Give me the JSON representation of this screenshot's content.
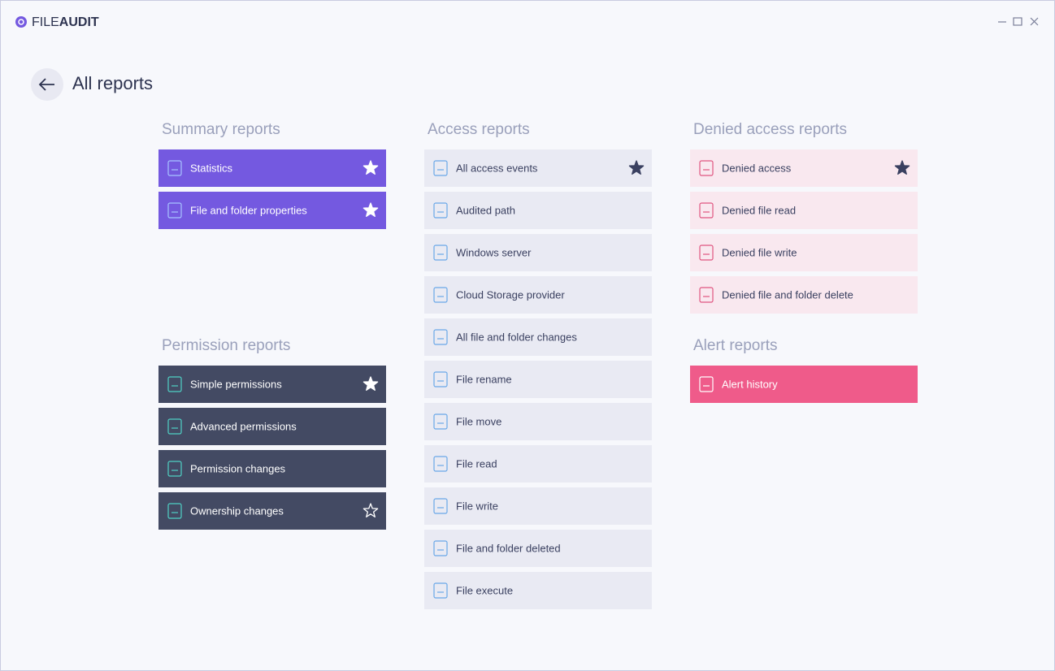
{
  "brand": {
    "prefix": "FILE",
    "suffix": "AUDIT"
  },
  "title": "All reports",
  "sections": [
    {
      "title": "Summary reports",
      "color": "#7459e0",
      "text_color": "#ffffff",
      "icon_color": "#a8c4ff",
      "items": [
        {
          "label": "Statistics",
          "star": "filled"
        },
        {
          "label": "File and folder properties",
          "star": "filled"
        }
      ]
    },
    {
      "title": "Permission reports",
      "color": "#434a63",
      "text_color": "#ffffff",
      "icon_color": "#4fd1c5",
      "items": [
        {
          "label": "Simple permissions",
          "star": "filled"
        },
        {
          "label": "Advanced permissions"
        },
        {
          "label": "Permission changes"
        },
        {
          "label": "Ownership changes",
          "star": "outline"
        }
      ]
    },
    {
      "title": "Access reports",
      "color": "#e9eaf3",
      "text_color": "#3a4060",
      "icon_color": "#6aa8e8",
      "items": [
        {
          "label": "All access events",
          "star": "filled"
        },
        {
          "label": "Audited path"
        },
        {
          "label": "Windows server"
        },
        {
          "label": "Cloud Storage provider"
        },
        {
          "label": "All file and folder changes"
        },
        {
          "label": "File rename"
        },
        {
          "label": "File move"
        },
        {
          "label": "File read"
        },
        {
          "label": "File write"
        },
        {
          "label": "File and folder deleted"
        },
        {
          "label": "File execute"
        }
      ]
    },
    {
      "title": "Denied access reports",
      "color": "#f9e8ef",
      "text_color": "#3a4060",
      "icon_color": "#e05580",
      "items": [
        {
          "label": "Denied access",
          "star": "filled"
        },
        {
          "label": "Denied file read"
        },
        {
          "label": "Denied file write"
        },
        {
          "label": "Denied file and folder delete"
        }
      ]
    },
    {
      "title": "Alert reports",
      "color": "#ef5b8a",
      "text_color": "#ffffff",
      "icon_color": "#ffffff",
      "items": [
        {
          "label": "Alert history"
        }
      ]
    }
  ]
}
